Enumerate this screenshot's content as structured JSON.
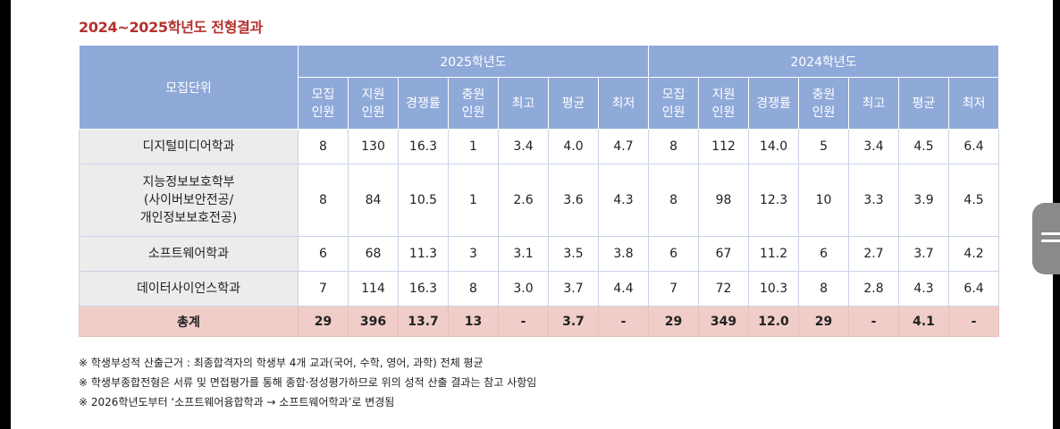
{
  "title": "2024~2025학년도 전형결과",
  "header": {
    "unit_label": "모집단위",
    "year_2025": "2025학년도",
    "year_2024": "2024학년도",
    "sub": [
      {
        "l1": "모집",
        "l2": "인원"
      },
      {
        "l1": "지원",
        "l2": "인원"
      },
      {
        "l1": "경쟁률",
        "l2": ""
      },
      {
        "l1": "충원",
        "l2": "인원"
      },
      {
        "l1": "최고",
        "l2": ""
      },
      {
        "l1": "평균",
        "l2": ""
      },
      {
        "l1": "최저",
        "l2": ""
      }
    ]
  },
  "rows": [
    {
      "name": [
        "디지털미디어학과"
      ],
      "y2025": [
        "8",
        "130",
        "16.3",
        "1",
        "3.4",
        "4.0",
        "4.7"
      ],
      "y2024": [
        "8",
        "112",
        "14.0",
        "5",
        "3.4",
        "4.5",
        "6.4"
      ]
    },
    {
      "name": [
        "지능정보보호학부",
        "(사이버보안전공/",
        "개인정보보호전공)"
      ],
      "y2025": [
        "8",
        "84",
        "10.5",
        "1",
        "2.6",
        "3.6",
        "4.3"
      ],
      "y2024": [
        "8",
        "98",
        "12.3",
        "10",
        "3.3",
        "3.9",
        "4.5"
      ]
    },
    {
      "name": [
        "소프트웨어학과"
      ],
      "y2025": [
        "6",
        "68",
        "11.3",
        "3",
        "3.1",
        "3.5",
        "3.8"
      ],
      "y2024": [
        "6",
        "67",
        "11.2",
        "6",
        "2.7",
        "3.7",
        "4.2"
      ]
    },
    {
      "name": [
        "데이터사이언스학과"
      ],
      "y2025": [
        "7",
        "114",
        "16.3",
        "8",
        "3.0",
        "3.7",
        "4.4"
      ],
      "y2024": [
        "7",
        "72",
        "10.3",
        "8",
        "2.8",
        "4.3",
        "6.4"
      ]
    }
  ],
  "total": {
    "name": "총계",
    "y2025": [
      "29",
      "396",
      "13.7",
      "13",
      "-",
      "3.7",
      "-"
    ],
    "y2024": [
      "29",
      "349",
      "12.0",
      "29",
      "-",
      "4.1",
      "-"
    ]
  },
  "notes": [
    "※ 학생부성적 산출근거 : 최종합격자의 학생부 4개 교과(국어, 수학, 영어, 과학) 전체 평균",
    "※ 학생부종합전형은 서류 및 면접평가를 통해 종합·정성평가하므로 위의 성적 산출 결과는 참고 사항임",
    "※ 2026학년도부터 ‘소프트웨어융합학과 → 소프트웨어학과’로 변경됨"
  ],
  "scroll_handle_icon": "menu-lines-icon"
}
